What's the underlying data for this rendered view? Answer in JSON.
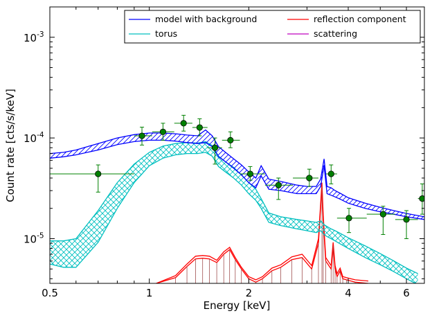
{
  "chart_data": {
    "type": "line",
    "xlabel": "Energy [keV]",
    "ylabel": "Count rate [cts/s/keV]",
    "xscale": "log",
    "yscale": "log",
    "xlim": [
      0.5,
      6.8
    ],
    "ylim": [
      3.6e-06,
      0.002
    ],
    "grid": false,
    "legend_position": "top-right",
    "x_ticks": [
      {
        "value": 0.5,
        "label": "0.5"
      },
      {
        "value": 1,
        "label": "1"
      },
      {
        "value": 2,
        "label": "2"
      },
      {
        "value": 4,
        "label": "4"
      },
      {
        "value": 6,
        "label": "6"
      }
    ],
    "y_ticks": [
      {
        "value": 0.001,
        "base": "10",
        "exp": "-3"
      },
      {
        "value": 0.0001,
        "base": "10",
        "exp": "-4"
      },
      {
        "value": 1e-05,
        "base": "10",
        "exp": "-5"
      }
    ],
    "legend": [
      {
        "name": "model with background",
        "color": "#0000ff"
      },
      {
        "name": "torus",
        "color": "#00bfbf"
      },
      {
        "name": "reflection component",
        "color": "#ff0000"
      },
      {
        "name": "scattering",
        "color": "#bf00bf"
      }
    ],
    "series": [
      {
        "name": "model with background",
        "color": "#0000ff",
        "x": [
          0.5,
          0.55,
          0.6,
          0.7,
          0.8,
          0.9,
          1.0,
          1.1,
          1.2,
          1.3,
          1.4,
          1.48,
          1.55,
          1.62,
          1.7,
          1.8,
          1.9,
          2.0,
          2.1,
          2.18,
          2.3,
          2.5,
          2.8,
          3.0,
          3.2,
          3.3,
          3.38,
          3.45,
          3.55,
          3.65,
          3.8,
          4.0,
          4.5,
          5.0,
          5.5,
          6.0,
          6.8
        ],
        "low": [
          6.3e-05,
          6.5e-05,
          6.8e-05,
          7.6e-05,
          8.6e-05,
          9.2e-05,
          9.5e-05,
          9.5e-05,
          9.3e-05,
          9e-05,
          8.8e-05,
          9e-05,
          8.2e-05,
          6.5e-05,
          5.8e-05,
          5e-05,
          4.3e-05,
          3.6e-05,
          3.2e-05,
          4.2e-05,
          3.1e-05,
          3e-05,
          2.8e-05,
          2.8e-05,
          2.8e-05,
          3.3e-05,
          5.3e-05,
          2.8e-05,
          2.7e-05,
          2.6e-05,
          2.45e-05,
          2.25e-05,
          2e-05,
          1.85e-05,
          1.75e-05,
          1.65e-05,
          1.55e-05
        ],
        "high": [
          7e-05,
          7.2e-05,
          7.6e-05,
          8.8e-05,
          0.0001,
          0.000108,
          0.000112,
          0.000112,
          0.00011,
          0.000107,
          0.000105,
          0.00012,
          0.000105,
          8.2e-05,
          7.2e-05,
          6.2e-05,
          5.4e-05,
          4.6e-05,
          4e-05,
          5.3e-05,
          3.9e-05,
          3.7e-05,
          3.4e-05,
          3.3e-05,
          3.3e-05,
          3.9e-05,
          6.2e-05,
          3.3e-05,
          3.2e-05,
          3e-05,
          2.8e-05,
          2.55e-05,
          2.25e-05,
          2.05e-05,
          1.9e-05,
          1.78e-05,
          1.65e-05
        ]
      },
      {
        "name": "torus",
        "color": "#00bfbf",
        "x": [
          0.5,
          0.55,
          0.6,
          0.7,
          0.8,
          0.9,
          1.0,
          1.1,
          1.2,
          1.3,
          1.4,
          1.48,
          1.55,
          1.62,
          1.7,
          1.8,
          1.9,
          2.0,
          2.1,
          2.18,
          2.3,
          2.5,
          2.8,
          3.0,
          3.2,
          3.3,
          3.38,
          3.45,
          3.55,
          3.65,
          3.8,
          4.0,
          4.5,
          5.0,
          5.5,
          6.0,
          6.5
        ],
        "low": [
          5.6e-06,
          5.2e-06,
          5.2e-06,
          9.2e-06,
          2e-05,
          3.6e-05,
          5.3e-05,
          6.3e-05,
          6.8e-05,
          7e-05,
          7e-05,
          7.2e-05,
          6.6e-05,
          5.2e-05,
          4.6e-05,
          4e-05,
          3.4e-05,
          2.8e-05,
          2.4e-05,
          2e-05,
          1.45e-05,
          1.35e-05,
          1.25e-05,
          1.2e-05,
          1.15e-05,
          1.2e-05,
          1.1e-05,
          1.05e-05,
          1e-05,
          9.5e-06,
          8.8e-06,
          8e-06,
          6.5e-06,
          5.5e-06,
          4.7e-06,
          4e-06,
          3.5e-06
        ],
        "high": [
          9.5e-06,
          9.5e-06,
          1e-05,
          1.9e-05,
          3.6e-05,
          5.5e-05,
          7.2e-05,
          8.3e-05,
          8.8e-05,
          9e-05,
          8.9e-05,
          9.2e-05,
          8.4e-05,
          6.6e-05,
          5.8e-05,
          5.1e-05,
          4.3e-05,
          3.6e-05,
          3.1e-05,
          2.5e-05,
          1.8e-05,
          1.65e-05,
          1.55e-05,
          1.5e-05,
          1.45e-05,
          1.5e-05,
          1.38e-05,
          1.32e-05,
          1.25e-05,
          1.2e-05,
          1.12e-05,
          1.02e-05,
          8.5e-06,
          7.1e-06,
          6e-06,
          5.1e-06,
          4.5e-06
        ]
      },
      {
        "name": "reflection component",
        "color": "#ff0000",
        "x": [
          1.05,
          1.2,
          1.3,
          1.38,
          1.45,
          1.52,
          1.6,
          1.68,
          1.75,
          1.82,
          1.9,
          2.0,
          2.1,
          2.2,
          2.35,
          2.5,
          2.7,
          2.9,
          3.1,
          3.25,
          3.33,
          3.36,
          3.42,
          3.55,
          3.6,
          3.65,
          3.7,
          3.78,
          3.85,
          3.95,
          4.2,
          4.6
        ],
        "low": [
          3.6e-06,
          4.1e-06,
          5.3e-06,
          6.3e-06,
          6.4e-06,
          6.3e-06,
          5.8e-06,
          7e-06,
          7.8e-06,
          6.2e-06,
          5e-06,
          4e-06,
          3.7e-06,
          4e-06,
          4.8e-06,
          5.2e-06,
          6.2e-06,
          6.5e-06,
          5e-06,
          9e-06,
          3.3e-05,
          1.5e-05,
          6e-06,
          5e-06,
          8.5e-06,
          5e-06,
          4.2e-06,
          4.8e-06,
          4e-06,
          3.9e-06,
          3.7e-06,
          3.6e-06
        ],
        "high": [
          3.6e-06,
          4.3e-06,
          5.6e-06,
          6.7e-06,
          6.8e-06,
          6.7e-06,
          6.1e-06,
          7.4e-06,
          8.2e-06,
          6.5e-06,
          5.2e-06,
          4.2e-06,
          3.9e-06,
          4.2e-06,
          5.1e-06,
          5.5e-06,
          6.6e-06,
          7e-06,
          5.4e-06,
          1e-05,
          3.6e-05,
          1.7e-05,
          6.5e-06,
          5.4e-06,
          9.2e-06,
          5.4e-06,
          4.5e-06,
          5.1e-06,
          4.2e-06,
          4.1e-06,
          3.9e-06,
          3.8e-06
        ]
      },
      {
        "name": "scattering",
        "color": "#bf00bf",
        "x": [],
        "low": [],
        "high": []
      }
    ],
    "data_points": {
      "color": "#008000",
      "points": [
        {
          "x": 0.7,
          "y": 4.4e-05,
          "xerr": [
            0.5,
            0.9
          ],
          "yerr": [
            2.9e-05,
            5.4e-05
          ]
        },
        {
          "x": 0.95,
          "y": 0.000105,
          "xerr": [
            0.9,
            1.02
          ],
          "yerr": [
            8.5e-05,
            0.000128
          ]
        },
        {
          "x": 1.1,
          "y": 0.000115,
          "xerr": [
            1.02,
            1.19
          ],
          "yerr": [
            9.5e-05,
            0.00014
          ]
        },
        {
          "x": 1.27,
          "y": 0.00014,
          "xerr": [
            1.19,
            1.35
          ],
          "yerr": [
            0.000117,
            0.000168
          ]
        },
        {
          "x": 1.42,
          "y": 0.000127,
          "xerr": [
            1.35,
            1.5
          ],
          "yerr": [
            0.000105,
            0.000155
          ]
        },
        {
          "x": 1.58,
          "y": 8e-05,
          "xerr": [
            1.5,
            1.66
          ],
          "yerr": [
            5.5e-05,
            0.0001
          ]
        },
        {
          "x": 1.76,
          "y": 9.5e-05,
          "xerr": [
            1.66,
            1.88
          ],
          "yerr": [
            8e-05,
            0.000115
          ]
        },
        {
          "x": 2.02,
          "y": 4.4e-05,
          "xerr": [
            1.88,
            2.24
          ],
          "yerr": [
            3.8e-05,
            5.2e-05
          ]
        },
        {
          "x": 2.46,
          "y": 3.4e-05,
          "xerr": [
            2.24,
            2.72
          ],
          "yerr": [
            2.45e-05,
            4e-05
          ]
        },
        {
          "x": 3.05,
          "y": 4e-05,
          "xerr": [
            2.72,
            3.25
          ],
          "yerr": [
            3.3e-05,
            4.9e-05
          ]
        },
        {
          "x": 3.55,
          "y": 4.4e-05,
          "xerr": [
            3.42,
            3.7
          ],
          "yerr": [
            3.5e-05,
            5.4e-05
          ]
        },
        {
          "x": 4.02,
          "y": 1.6e-05,
          "xerr": [
            3.7,
            4.55
          ],
          "yerr": [
            1.15e-05,
            2e-05
          ]
        },
        {
          "x": 5.1,
          "y": 1.75e-05,
          "xerr": [
            4.55,
            5.55
          ],
          "yerr": [
            1.1e-05,
            2.1e-05
          ]
        },
        {
          "x": 6.0,
          "y": 1.55e-05,
          "xerr": [
            5.55,
            6.5
          ],
          "yerr": [
            1e-05,
            1.9e-05
          ]
        },
        {
          "x": 6.7,
          "y": 2.5e-05,
          "xerr": [
            6.5,
            6.8
          ],
          "yerr": [
            1.75e-05,
            3.5e-05
          ]
        }
      ]
    }
  }
}
